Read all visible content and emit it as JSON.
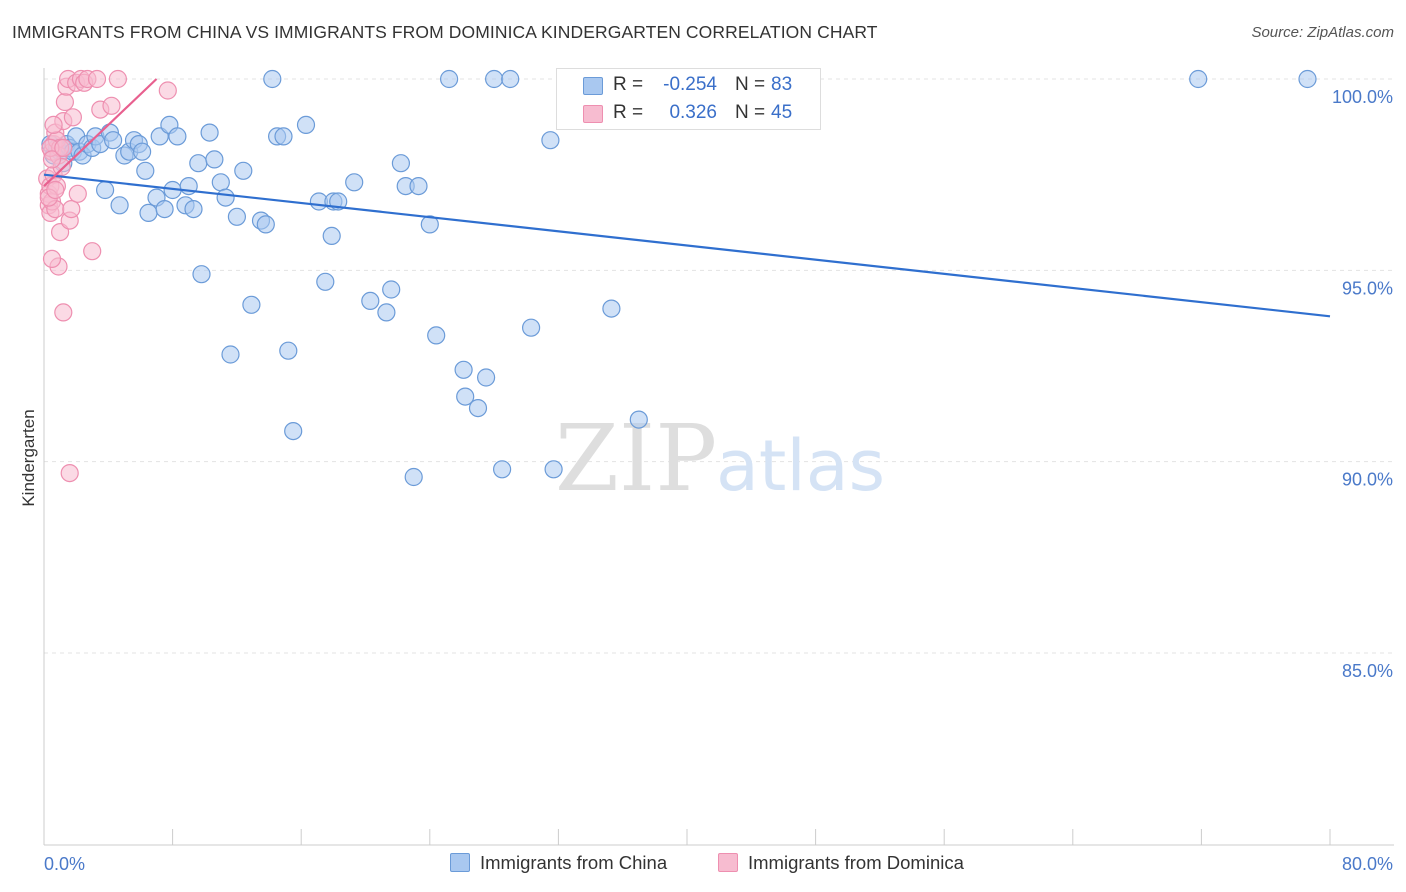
{
  "header": {
    "title": "IMMIGRANTS FROM CHINA VS IMMIGRANTS FROM DOMINICA KINDERGARTEN CORRELATION CHART",
    "source": "Source: ZipAtlas.com"
  },
  "watermark": {
    "zip": "ZIP",
    "atlas": "atlas"
  },
  "legend": {
    "china": {
      "r_label": "R =",
      "r_value": "-0.254",
      "n_label": "N =",
      "n_value": "83"
    },
    "dominica": {
      "r_label": "R =",
      "r_value": "0.326",
      "n_label": "N =",
      "n_value": "45"
    }
  },
  "colors": {
    "china_fill": "#a9c8f0",
    "china_stroke": "#6b9bd8",
    "china_line": "#2f6fcf",
    "dominica_fill": "#f7bcd0",
    "dominica_stroke": "#ee8fb0",
    "dominica_line": "#e8608f",
    "tick_text": "#4a79c9",
    "grid": "#e3e3e3"
  },
  "chart_data": {
    "type": "scatter",
    "title": "IMMIGRANTS FROM CHINA VS IMMIGRANTS FROM DOMINICA KINDERGARTEN CORRELATION CHART",
    "xlabel": "",
    "ylabel": "Kindergarten",
    "xlim": [
      0,
      80
    ],
    "ylim": [
      80.5,
      100.4
    ],
    "x_tick_labels": [
      "0.0%",
      "80.0%"
    ],
    "y_ticks": [
      85,
      90,
      95,
      100
    ],
    "y_tick_labels": [
      "85.0%",
      "90.0%",
      "95.0%",
      "100.0%"
    ],
    "grid": true,
    "legend_position": "bottom",
    "series": [
      {
        "name": "Immigrants from China",
        "color": "#a9c8f0",
        "trend": {
          "x": [
            0,
            80
          ],
          "y": [
            97.5,
            93.8
          ]
        },
        "points": [
          [
            0.4,
            98.3
          ],
          [
            0.6,
            98.0
          ],
          [
            0.8,
            98.2
          ],
          [
            1.0,
            98.1
          ],
          [
            1.2,
            97.8
          ],
          [
            1.4,
            98.3
          ],
          [
            1.6,
            98.2
          ],
          [
            1.8,
            98.1
          ],
          [
            2.0,
            98.5
          ],
          [
            2.2,
            98.1
          ],
          [
            2.4,
            98.0
          ],
          [
            2.7,
            98.3
          ],
          [
            3.0,
            98.2
          ],
          [
            3.2,
            98.5
          ],
          [
            3.5,
            98.3
          ],
          [
            3.8,
            97.1
          ],
          [
            4.1,
            98.6
          ],
          [
            4.3,
            98.4
          ],
          [
            4.7,
            96.7
          ],
          [
            5.0,
            98.0
          ],
          [
            5.3,
            98.1
          ],
          [
            5.6,
            98.4
          ],
          [
            5.9,
            98.3
          ],
          [
            6.1,
            98.1
          ],
          [
            6.3,
            97.6
          ],
          [
            6.5,
            96.5
          ],
          [
            7.0,
            96.9
          ],
          [
            7.2,
            98.5
          ],
          [
            7.5,
            96.6
          ],
          [
            7.8,
            98.8
          ],
          [
            8.0,
            97.1
          ],
          [
            8.3,
            98.5
          ],
          [
            8.8,
            96.7
          ],
          [
            9.0,
            97.2
          ],
          [
            9.3,
            96.6
          ],
          [
            9.6,
            97.8
          ],
          [
            9.8,
            94.9
          ],
          [
            10.3,
            98.6
          ],
          [
            10.6,
            97.9
          ],
          [
            11.0,
            97.3
          ],
          [
            11.3,
            96.9
          ],
          [
            11.6,
            92.8
          ],
          [
            12.0,
            96.4
          ],
          [
            12.4,
            97.6
          ],
          [
            12.9,
            94.1
          ],
          [
            13.5,
            96.3
          ],
          [
            13.8,
            96.2
          ],
          [
            14.2,
            100.0
          ],
          [
            14.5,
            98.5
          ],
          [
            14.9,
            98.5
          ],
          [
            15.2,
            92.9
          ],
          [
            15.5,
            90.8
          ],
          [
            16.3,
            98.8
          ],
          [
            17.1,
            96.8
          ],
          [
            17.5,
            94.7
          ],
          [
            17.9,
            95.9
          ],
          [
            18.0,
            96.8
          ],
          [
            18.3,
            96.8
          ],
          [
            19.3,
            97.3
          ],
          [
            20.3,
            94.2
          ],
          [
            21.3,
            93.9
          ],
          [
            21.6,
            94.5
          ],
          [
            22.2,
            97.8
          ],
          [
            22.5,
            97.2
          ],
          [
            23.0,
            89.6
          ],
          [
            23.3,
            97.2
          ],
          [
            24.0,
            96.2
          ],
          [
            24.4,
            93.3
          ],
          [
            25.2,
            100.0
          ],
          [
            26.1,
            92.4
          ],
          [
            26.2,
            91.7
          ],
          [
            27.0,
            91.4
          ],
          [
            27.5,
            92.2
          ],
          [
            28.0,
            100.0
          ],
          [
            28.5,
            89.8
          ],
          [
            29.0,
            100.0
          ],
          [
            30.3,
            93.5
          ],
          [
            31.5,
            98.4
          ],
          [
            31.7,
            89.8
          ],
          [
            35.3,
            94.0
          ],
          [
            37.0,
            91.1
          ],
          [
            71.8,
            100.0
          ],
          [
            78.6,
            100.0
          ]
        ]
      },
      {
        "name": "Immigrants from Dominica",
        "color": "#f7bcd0",
        "trend": {
          "x": [
            0,
            7
          ],
          "y": [
            97.2,
            100.0
          ]
        },
        "points": [
          [
            0.2,
            97.4
          ],
          [
            0.3,
            97.0
          ],
          [
            0.3,
            96.7
          ],
          [
            0.4,
            97.2
          ],
          [
            0.4,
            96.5
          ],
          [
            0.5,
            96.8
          ],
          [
            0.5,
            98.1
          ],
          [
            0.6,
            97.5
          ],
          [
            0.6,
            98.3
          ],
          [
            0.7,
            98.6
          ],
          [
            0.7,
            96.6
          ],
          [
            0.8,
            97.2
          ],
          [
            0.8,
            98.4
          ],
          [
            0.9,
            98.0
          ],
          [
            1.0,
            98.2
          ],
          [
            1.0,
            96.0
          ],
          [
            1.1,
            97.7
          ],
          [
            1.2,
            98.9
          ],
          [
            1.3,
            99.4
          ],
          [
            1.4,
            99.8
          ],
          [
            1.5,
            100.0
          ],
          [
            1.6,
            96.3
          ],
          [
            1.7,
            96.6
          ],
          [
            1.8,
            99.0
          ],
          [
            2.0,
            99.9
          ],
          [
            2.1,
            97.0
          ],
          [
            2.3,
            100.0
          ],
          [
            2.5,
            99.9
          ],
          [
            2.7,
            100.0
          ],
          [
            3.0,
            95.5
          ],
          [
            3.3,
            100.0
          ],
          [
            3.5,
            99.2
          ],
          [
            4.2,
            99.3
          ],
          [
            4.6,
            100.0
          ],
          [
            7.7,
            99.7
          ],
          [
            1.2,
            93.9
          ],
          [
            1.6,
            89.7
          ],
          [
            0.9,
            95.1
          ],
          [
            0.5,
            95.3
          ],
          [
            0.6,
            98.8
          ],
          [
            0.4,
            98.2
          ],
          [
            0.3,
            96.9
          ],
          [
            0.5,
            97.9
          ],
          [
            0.7,
            97.1
          ],
          [
            1.2,
            98.2
          ]
        ]
      }
    ]
  },
  "bottom_legend": {
    "china_label": "Immigrants from China",
    "dominica_label": "Immigrants from Dominica"
  }
}
